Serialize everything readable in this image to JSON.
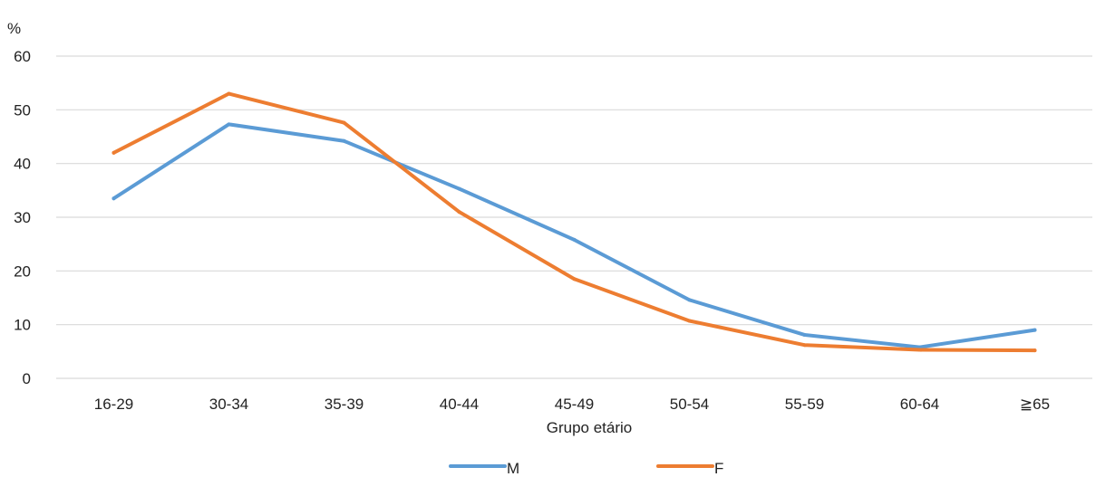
{
  "chart_data": {
    "type": "line",
    "ylabel": "%",
    "xlabel": "Grupo etário",
    "categories": [
      "16-29",
      "30-34",
      "35-39",
      "40-44",
      "45-49",
      "50-54",
      "55-59",
      "60-64",
      "≧65"
    ],
    "ylim": [
      0,
      60
    ],
    "yticks": [
      0,
      10,
      20,
      30,
      40,
      50,
      60
    ],
    "grid": true,
    "legend_position": "bottom",
    "series": [
      {
        "name": "M",
        "color": "#5b9bd5",
        "values": [
          33.5,
          47.3,
          44.2,
          35.3,
          25.8,
          14.6,
          8.1,
          5.8,
          9.0
        ]
      },
      {
        "name": "F",
        "color": "#ed7d31",
        "values": [
          42.0,
          53.0,
          47.6,
          31.0,
          18.5,
          10.7,
          6.2,
          5.3,
          5.2
        ]
      }
    ]
  }
}
